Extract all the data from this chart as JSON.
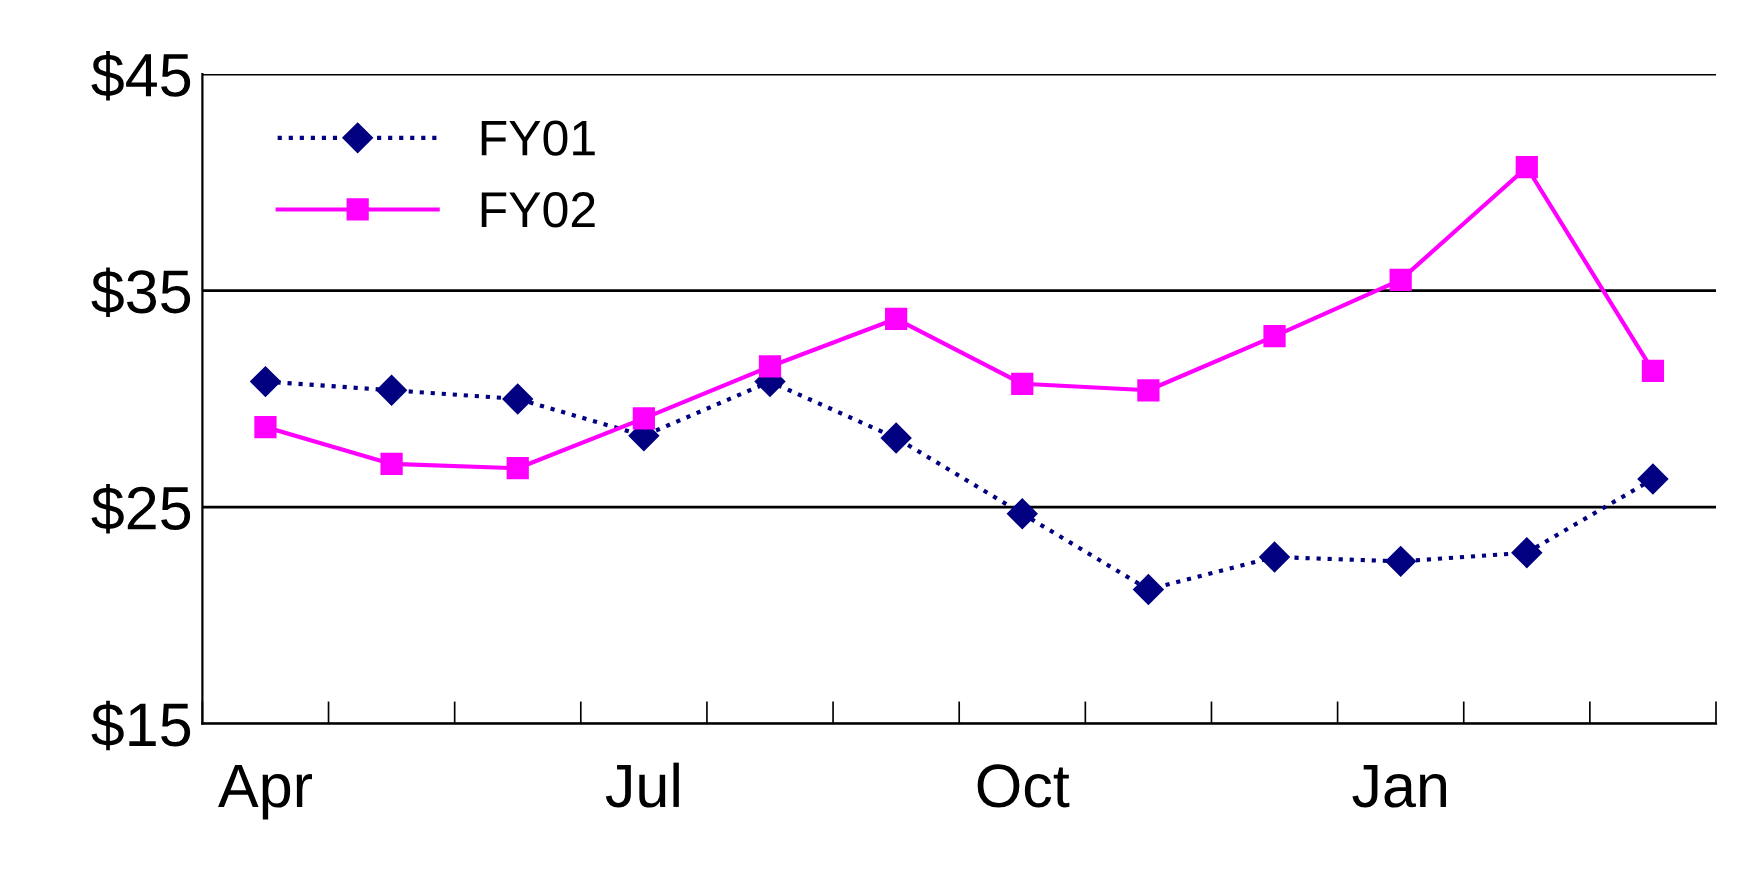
{
  "chart_data": {
    "type": "line",
    "categories": [
      "Apr",
      null,
      null,
      "Jul",
      null,
      null,
      "Oct",
      null,
      null,
      "Jan",
      null,
      null
    ],
    "series": [
      {
        "name": "FY01",
        "color": "#000080",
        "marker": "diamond",
        "line_style": "dotted",
        "values": [
          30.8,
          30.4,
          30.0,
          28.3,
          30.8,
          28.2,
          24.7,
          21.2,
          22.7,
          22.5,
          22.9,
          26.3
        ]
      },
      {
        "name": "FY02",
        "color": "#ff00ff",
        "marker": "square",
        "line_style": "solid",
        "values": [
          28.7,
          27.0,
          26.8,
          29.1,
          31.5,
          33.7,
          30.7,
          30.4,
          32.9,
          35.5,
          40.7,
          31.3
        ]
      }
    ],
    "ylim": [
      15,
      45
    ],
    "yticks": [
      {
        "value": 15,
        "label": "$15"
      },
      {
        "value": 25,
        "label": "$25"
      },
      {
        "value": 35,
        "label": "$35"
      },
      {
        "value": 45,
        "label": "$45"
      }
    ],
    "grid": "y",
    "legend": "top left"
  }
}
